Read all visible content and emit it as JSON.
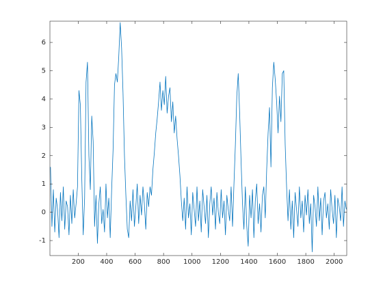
{
  "chart_data": {
    "type": "line",
    "color": "#0072bd",
    "xlim": [
      1,
      2088
    ],
    "ylim": [
      -1.53,
      6.75
    ],
    "xticks": [
      200,
      400,
      600,
      800,
      1000,
      1200,
      1400,
      1600,
      1800,
      2000
    ],
    "yticks": [
      -1,
      0,
      1,
      2,
      3,
      4,
      5,
      6
    ],
    "x": [
      5,
      15,
      25,
      35,
      45,
      55,
      65,
      75,
      85,
      95,
      105,
      115,
      125,
      135,
      145,
      155,
      165,
      175,
      185,
      195,
      205,
      215,
      225,
      235,
      245,
      255,
      265,
      275,
      285,
      295,
      305,
      315,
      325,
      335,
      345,
      355,
      365,
      375,
      385,
      395,
      405,
      415,
      425,
      435,
      445,
      455,
      465,
      475,
      485,
      495,
      505,
      515,
      525,
      535,
      545,
      555,
      565,
      575,
      585,
      595,
      605,
      615,
      625,
      635,
      645,
      655,
      665,
      675,
      685,
      695,
      705,
      715,
      725,
      735,
      745,
      755,
      765,
      775,
      785,
      795,
      805,
      815,
      825,
      835,
      845,
      855,
      865,
      875,
      885,
      895,
      905,
      915,
      925,
      935,
      945,
      955,
      965,
      975,
      985,
      995,
      1005,
      1015,
      1025,
      1035,
      1045,
      1055,
      1065,
      1075,
      1085,
      1095,
      1105,
      1115,
      1125,
      1135,
      1145,
      1155,
      1165,
      1175,
      1185,
      1195,
      1205,
      1215,
      1225,
      1235,
      1245,
      1255,
      1265,
      1275,
      1285,
      1295,
      1305,
      1315,
      1325,
      1335,
      1345,
      1355,
      1365,
      1375,
      1385,
      1395,
      1405,
      1415,
      1425,
      1435,
      1445,
      1455,
      1465,
      1475,
      1485,
      1495,
      1505,
      1515,
      1525,
      1535,
      1545,
      1555,
      1565,
      1575,
      1585,
      1595,
      1605,
      1615,
      1625,
      1635,
      1645,
      1655,
      1665,
      1675,
      1685,
      1695,
      1705,
      1715,
      1725,
      1735,
      1745,
      1755,
      1765,
      1775,
      1785,
      1795,
      1805,
      1815,
      1825,
      1835,
      1845,
      1855,
      1865,
      1875,
      1885,
      1895,
      1905,
      1915,
      1925,
      1935,
      1945,
      1955,
      1965,
      1975,
      1985,
      1995,
      2005,
      2015,
      2025,
      2035,
      2045,
      2055,
      2065,
      2075,
      2085
    ],
    "values": [
      1.6,
      -0.5,
      0.8,
      -0.7,
      0.5,
      0.1,
      -0.9,
      0.7,
      -0.3,
      0.9,
      -0.6,
      0.4,
      0.2,
      -0.8,
      0.6,
      -0.4,
      0.8,
      -0.2,
      0.3,
      0.9,
      4.3,
      3.8,
      1.2,
      -0.8,
      0.5,
      4.6,
      5.3,
      2.0,
      0.8,
      3.4,
      2.5,
      -0.5,
      0.6,
      -1.1,
      0.3,
      0.9,
      -0.4,
      0.1,
      -0.7,
      1.0,
      -0.2,
      0.5,
      -0.9,
      0.8,
      2.2,
      4.5,
      4.9,
      4.6,
      5.5,
      6.7,
      5.8,
      4.2,
      2.0,
      0.6,
      -0.6,
      -0.9,
      0.4,
      -0.3,
      0.8,
      -0.5,
      0.2,
      1.0,
      -0.4,
      0.6,
      -0.1,
      0.9,
      0.3,
      -0.6,
      0.7,
      0.2,
      0.9,
      0.6,
      1.5,
      2.1,
      2.8,
      3.3,
      3.9,
      4.6,
      3.6,
      4.3,
      3.8,
      4.8,
      3.5,
      4.1,
      4.4,
      3.2,
      3.9,
      2.8,
      3.4,
      2.6,
      2.0,
      1.3,
      0.4,
      -0.3,
      0.5,
      -0.6,
      0.9,
      -0.2,
      0.3,
      -0.8,
      0.7,
      0.1,
      -0.5,
      0.9,
      -0.3,
      0.4,
      -0.7,
      0.8,
      0.2,
      -0.4,
      0.6,
      -0.9,
      0.3,
      0.9,
      -0.1,
      0.5,
      -0.6,
      0.7,
      0.0,
      -0.4,
      0.8,
      -0.2,
      0.4,
      -0.8,
      0.6,
      0.1,
      -0.3,
      0.9,
      -0.5,
      1.0,
      2.4,
      4.1,
      4.9,
      3.5,
      1.8,
      0.3,
      -0.6,
      0.9,
      -0.5,
      -1.2,
      0.6,
      -0.2,
      0.8,
      -0.9,
      0.4,
      1.0,
      -0.4,
      0.3,
      -0.7,
      0.6,
      0.9,
      -0.2,
      1.5,
      2.8,
      3.7,
      1.6,
      4.4,
      5.3,
      4.7,
      3.9,
      2.8,
      4.1,
      3.2,
      4.9,
      5.0,
      2.4,
      0.9,
      -0.3,
      0.8,
      -0.6,
      0.4,
      -0.9,
      0.7,
      0.1,
      -0.5,
      0.9,
      -0.2,
      0.4,
      -0.7,
      0.6,
      -0.1,
      0.8,
      -0.4,
      0.3,
      -1.4,
      0.6,
      0.2,
      -0.5,
      0.9,
      -0.3,
      0.5,
      -0.8,
      0.4,
      0.7,
      -0.2,
      0.3,
      -0.6,
      0.8,
      0.1,
      -0.4,
      0.6,
      -0.9,
      0.5,
      0.2,
      -0.3,
      0.9,
      -0.5,
      0.4,
      0.1
    ]
  }
}
